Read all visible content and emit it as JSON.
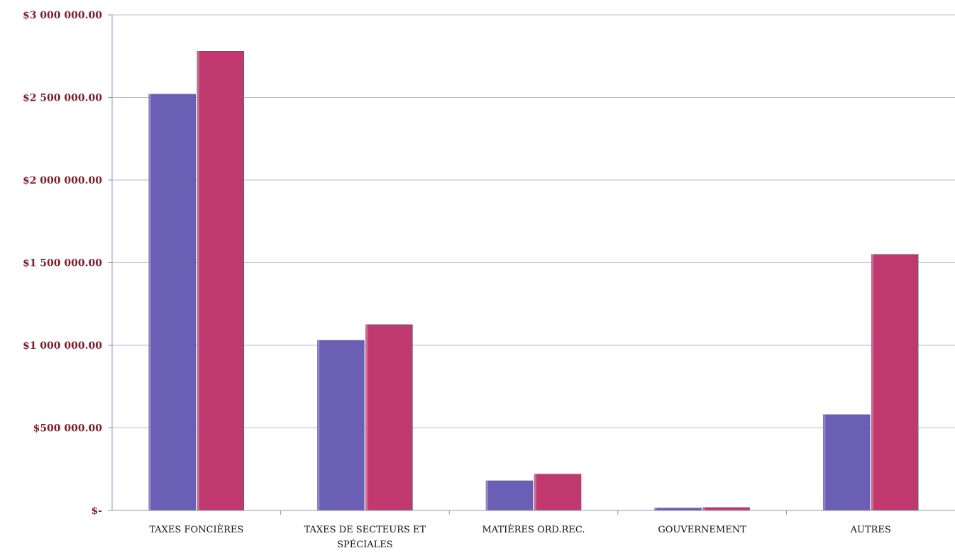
{
  "chart_data": {
    "type": "bar",
    "title": "",
    "xlabel": "",
    "ylabel": "",
    "ylim": [
      0,
      3000000
    ],
    "grid": true,
    "legend": "none",
    "y_ticks": [
      {
        "value": 0,
        "label": "$-"
      },
      {
        "value": 500000,
        "label": "$500 000.00"
      },
      {
        "value": 1000000,
        "label": "$1 000 000.00"
      },
      {
        "value": 1500000,
        "label": "$1 500 000.00"
      },
      {
        "value": 2000000,
        "label": "$2 000 000.00"
      },
      {
        "value": 2500000,
        "label": "$2 500 000.00"
      },
      {
        "value": 3000000,
        "label": "$3 000 000.00"
      }
    ],
    "categories": [
      [
        "TAXES FONCIÈRES"
      ],
      [
        "TAXES DE SECTEURS ET",
        "SPÉCIALES"
      ],
      [
        "MATIÈRES ORD.REC."
      ],
      [
        "GOUVERNEMENT"
      ],
      [
        "AUTRES"
      ]
    ],
    "series": [
      {
        "color": "#6b5fb5",
        "values": [
          2520000,
          1030000,
          180000,
          15000,
          580000
        ]
      },
      {
        "color": "#c0396e",
        "values": [
          2780000,
          1125000,
          220000,
          18000,
          1550000
        ]
      }
    ],
    "colors": {
      "grid": "#b4bcd8",
      "axis": "#8f96b8",
      "tick_text": "#7a1f2c",
      "category_text": "#111111"
    }
  }
}
